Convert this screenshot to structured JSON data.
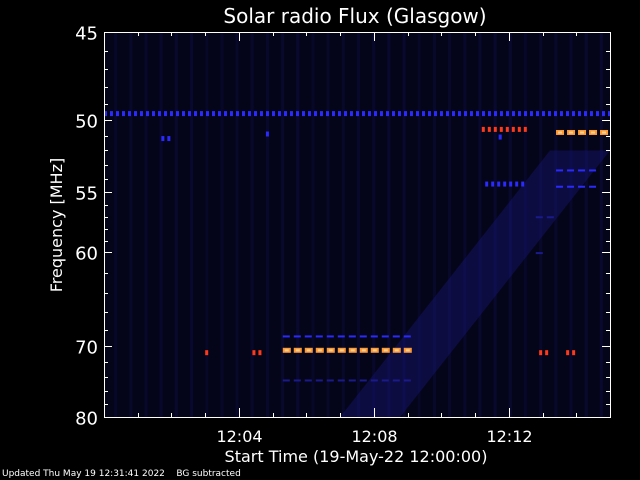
{
  "chart_data": {
    "type": "heatmap",
    "title": "Solar radio Flux (Glasgow)",
    "xlabel": "Start Time (19-May-22 12:00:00)",
    "ylabel": "Frequency [MHz]",
    "x_unit": "minutes after 12:00",
    "xlim": [
      0,
      15
    ],
    "ylim": [
      45,
      80
    ],
    "y_ticks": [
      45,
      50,
      55,
      60,
      70,
      80
    ],
    "y_tick_labels": [
      "45",
      "50",
      "55",
      "60",
      "70",
      "80"
    ],
    "x_ticks": [
      4,
      8,
      12
    ],
    "x_tick_labels": [
      "12:04",
      "12:08",
      "12:12"
    ],
    "background_color": "#05051a",
    "intensity_colors": {
      "low": "#1a1a8c",
      "medium": "#2a2aff",
      "high": "#ff3a1a",
      "peak": "#ff9a33"
    },
    "bands": [
      {
        "freq": 49.6,
        "t_start": 0.0,
        "t_end": 15.0,
        "intensity": "medium",
        "pattern": "dots"
      },
      {
        "freq": 51.2,
        "t_start": 1.7,
        "t_end": 1.9,
        "intensity": "medium",
        "pattern": "dots"
      },
      {
        "freq": 50.9,
        "t_start": 4.8,
        "t_end": 4.9,
        "intensity": "medium",
        "pattern": "dots"
      },
      {
        "freq": 50.6,
        "t_start": 11.2,
        "t_end": 12.5,
        "intensity": "high",
        "pattern": "dots"
      },
      {
        "freq": 51.1,
        "t_start": 11.7,
        "t_end": 11.8,
        "intensity": "medium",
        "pattern": "dots"
      },
      {
        "freq": 50.8,
        "t_start": 13.4,
        "t_end": 15.0,
        "intensity": "peak",
        "pattern": "dashes"
      },
      {
        "freq": 53.4,
        "t_start": 13.4,
        "t_end": 14.6,
        "intensity": "medium",
        "pattern": "dashes"
      },
      {
        "freq": 54.4,
        "t_start": 11.3,
        "t_end": 12.4,
        "intensity": "medium",
        "pattern": "dots"
      },
      {
        "freq": 54.6,
        "t_start": 13.4,
        "t_end": 14.6,
        "intensity": "medium",
        "pattern": "dashes"
      },
      {
        "freq": 57.0,
        "t_start": 12.8,
        "t_end": 13.4,
        "intensity": "low",
        "pattern": "dashes"
      },
      {
        "freq": 60.1,
        "t_start": 12.8,
        "t_end": 13.0,
        "intensity": "low",
        "pattern": "dashes"
      },
      {
        "freq": 68.8,
        "t_start": 5.3,
        "t_end": 9.2,
        "intensity": "medium",
        "pattern": "dashes"
      },
      {
        "freq": 70.5,
        "t_start": 5.3,
        "t_end": 9.2,
        "intensity": "peak",
        "pattern": "dashes"
      },
      {
        "freq": 70.8,
        "t_start": 3.0,
        "t_end": 3.1,
        "intensity": "high",
        "pattern": "dots"
      },
      {
        "freq": 70.8,
        "t_start": 4.4,
        "t_end": 4.6,
        "intensity": "high",
        "pattern": "dots"
      },
      {
        "freq": 70.8,
        "t_start": 12.9,
        "t_end": 13.1,
        "intensity": "high",
        "pattern": "dots"
      },
      {
        "freq": 70.8,
        "t_start": 13.7,
        "t_end": 13.9,
        "intensity": "high",
        "pattern": "dots"
      },
      {
        "freq": 74.5,
        "t_start": 5.3,
        "t_end": 9.2,
        "intensity": "low",
        "pattern": "dashes"
      }
    ],
    "diffuse_emission": [
      {
        "t_start": 7.0,
        "t_end": 15.0,
        "f_start": 80.0,
        "f_end": 52.0,
        "intensity": "low"
      }
    ]
  },
  "footer": {
    "updated": "Updated Thu May 19 12:31:41 2022",
    "note": "BG subtracted"
  }
}
